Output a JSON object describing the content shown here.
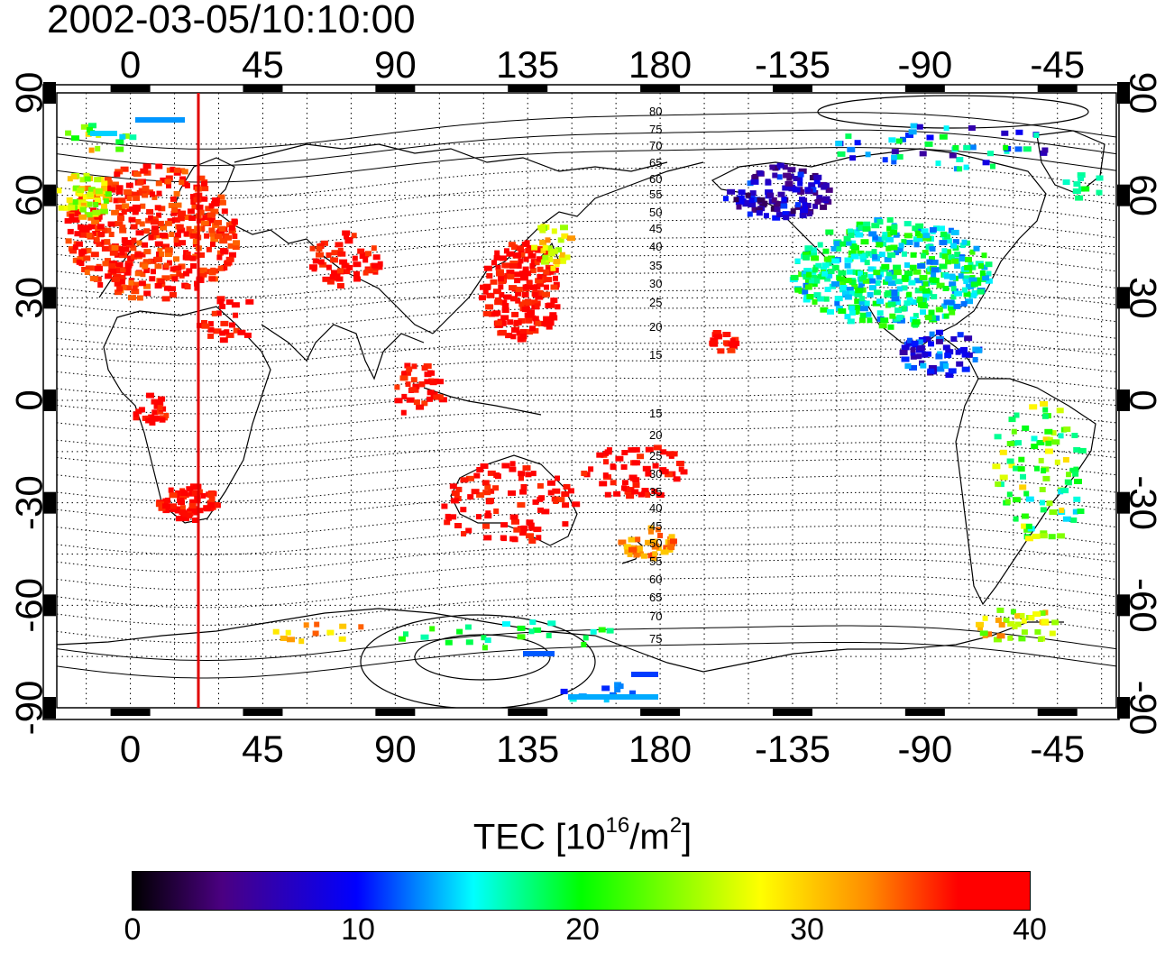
{
  "title": "2002-03-05/10:10:00",
  "map": {
    "top_ticks": [
      "0",
      "45",
      "90",
      "135",
      "180",
      "-135",
      "-90",
      "-45"
    ],
    "bottom_ticks": [
      "0",
      "45",
      "90",
      "135",
      "180",
      "-135",
      "-90",
      "-45"
    ],
    "left_ticks": [
      "90",
      "60",
      "30",
      "0",
      "-30",
      "-60",
      "-90"
    ],
    "right_ticks": [
      "90",
      "60",
      "30",
      "0",
      "-30",
      "-60",
      "-90"
    ],
    "contour_labels_north": [
      "80",
      "75",
      "70",
      "65",
      "60",
      "55",
      "50",
      "45",
      "40",
      "35",
      "30",
      "25",
      "20",
      "15"
    ],
    "contour_labels_south": [
      "15",
      "20",
      "25",
      "30",
      "35",
      "40",
      "45",
      "50",
      "55",
      "60",
      "65",
      "70",
      "75"
    ],
    "marker_line_color": "#e00000"
  },
  "colorbar": {
    "title_prefix": "TEC  [10",
    "title_sup1": "16",
    "title_mid": "/m",
    "title_sup2": "2",
    "title_suffix": "]",
    "labels": [
      "0",
      "10",
      "20",
      "30",
      "40"
    ],
    "colors": [
      "#000000",
      "#4b0082",
      "#0000ff",
      "#00ffff",
      "#00ff00",
      "#ffff00",
      "#ff8c00",
      "#ff0000"
    ]
  }
}
